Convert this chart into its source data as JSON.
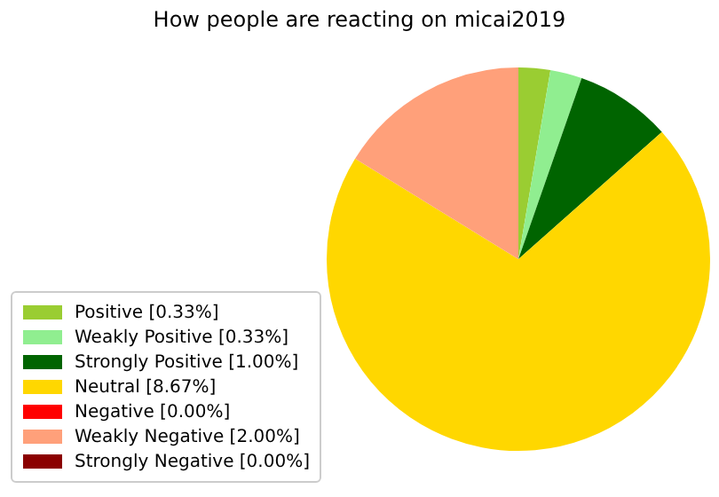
{
  "chart_data": {
    "type": "pie",
    "title": "How people are reacting on micai2019",
    "categories": [
      "Positive [0.33%]",
      "Weakly Positive [0.33%]",
      "Strongly Positive [1.00%]",
      "Neutral [8.67%]",
      "Negative [0.00%]",
      "Weakly Negative [2.00%]",
      "Strongly Negative [0.00%]"
    ],
    "values": [
      0.33,
      0.33,
      1.0,
      8.67,
      0,
      2.0,
      0
    ],
    "colors": [
      "#9acd32",
      "#90ee90",
      "#006400",
      "#ffd700",
      "#ff0000",
      "#ffa07a",
      "#8b0000"
    ],
    "legend": "left"
  }
}
